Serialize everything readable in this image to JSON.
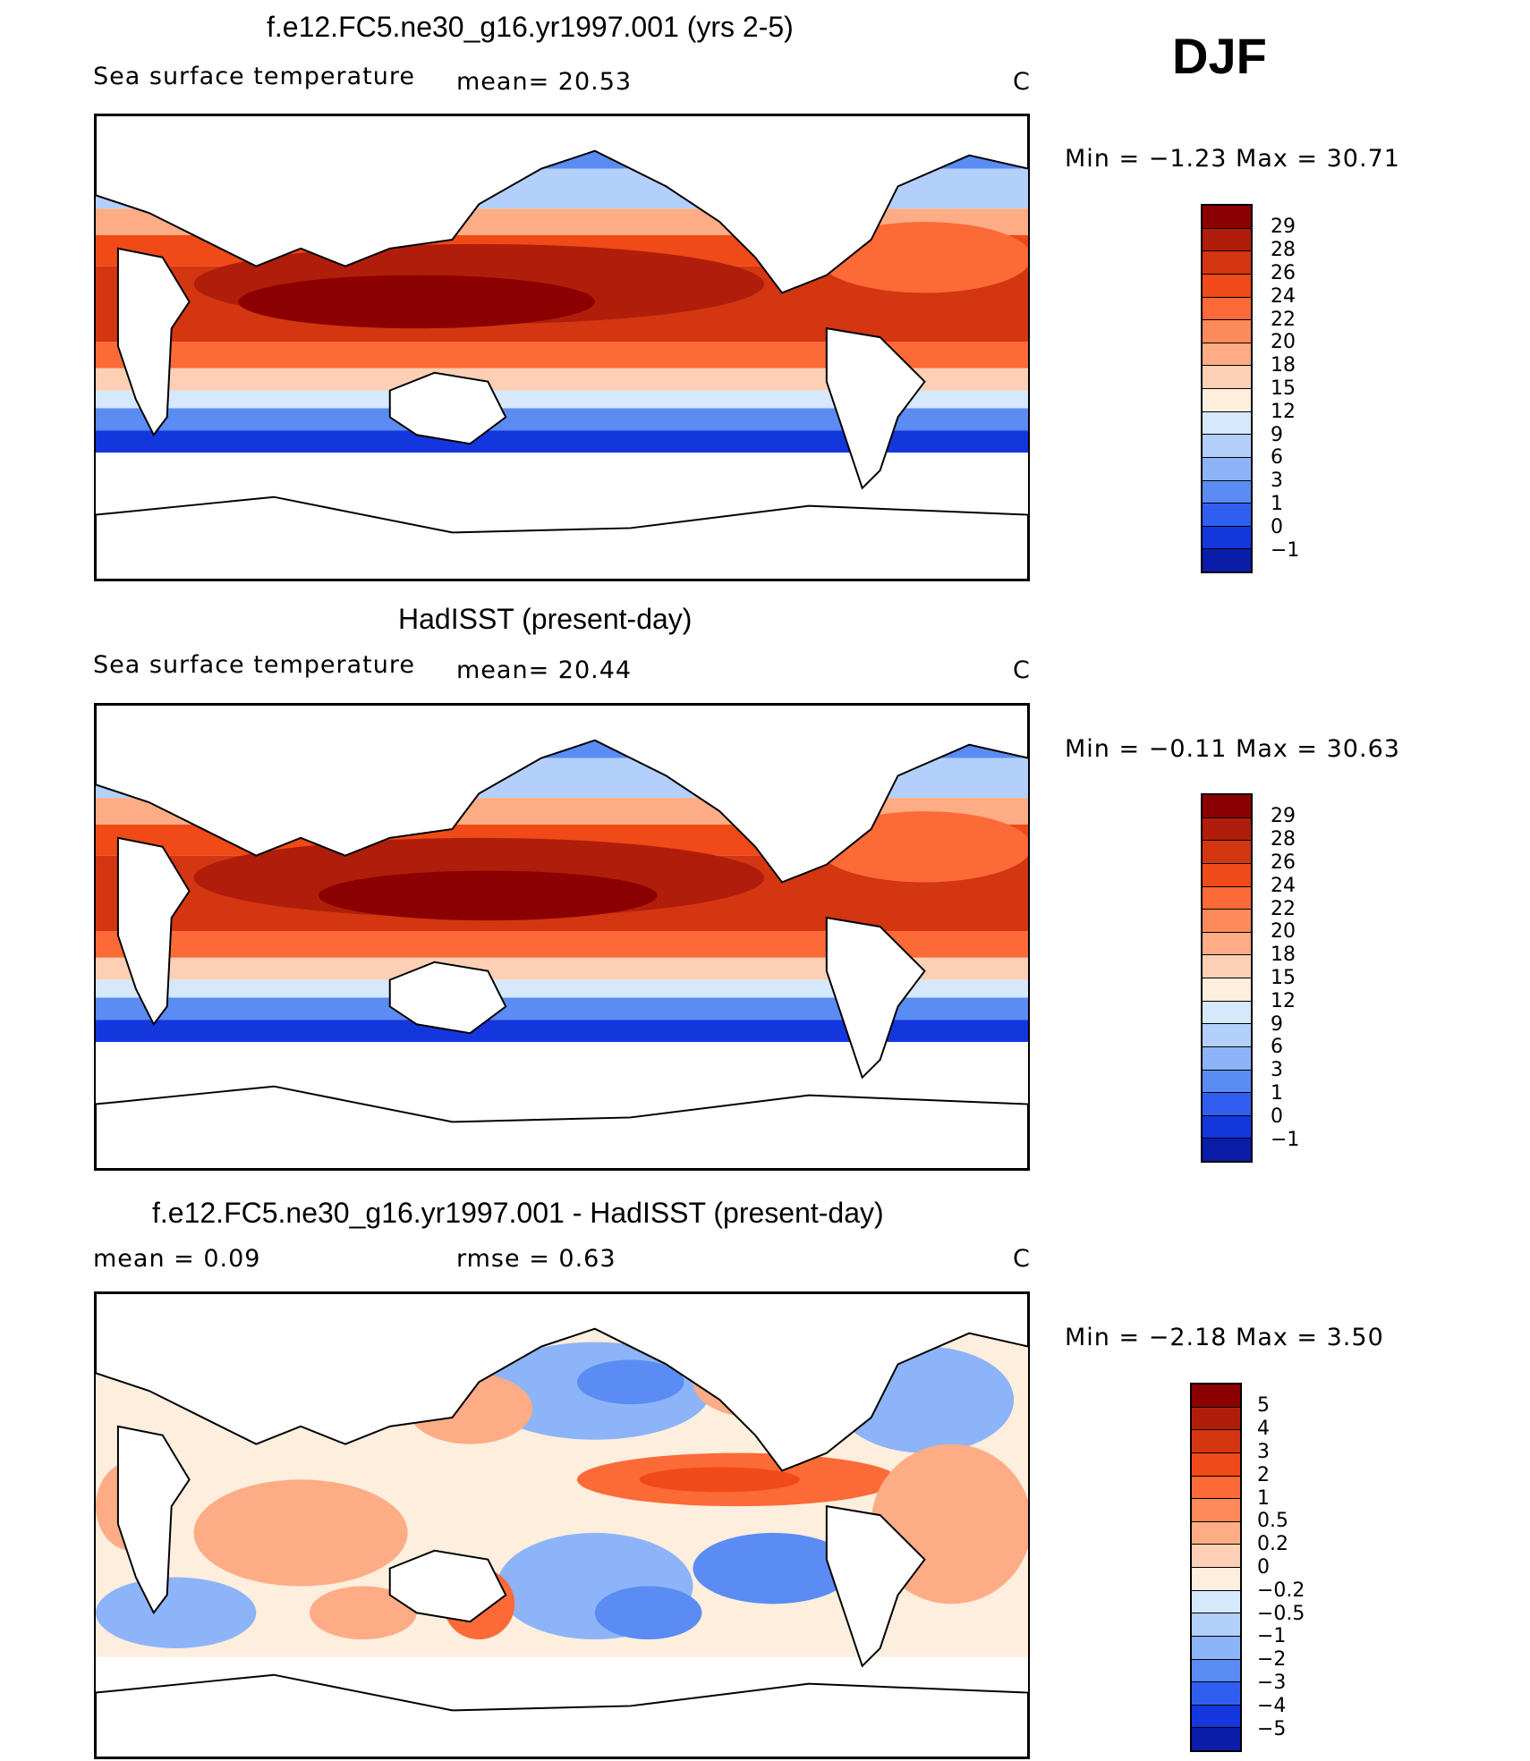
{
  "season": "DJF",
  "panels": [
    {
      "title": "f.e12.FC5.ne30_g16.yr1997.001 (yrs 2-5)",
      "left_label": "Sea surface temperature",
      "mid_label": "mean=   20.53",
      "units": "C",
      "min_label": "Min  =    −1.23  Max  =    30.71",
      "colorbar_labels": [
        "29",
        "28",
        "26",
        "24",
        "22",
        "20",
        "18",
        "15",
        "12",
        "9",
        "6",
        "3",
        "1",
        "0",
        "−1"
      ],
      "colorbar_colors": [
        "#8b0000",
        "#b01e0b",
        "#d33611",
        "#ef4a17",
        "#fb6a37",
        "#fc8a5a",
        "#fdac85",
        "#fdd0b5",
        "#fdeede",
        "#d6e8fb",
        "#b3cffb",
        "#8db4f8",
        "#5a8cf3",
        "#2f5ef0",
        "#1436dd",
        "#0a1ca8",
        "#00007a"
      ],
      "color_index": "sst"
    },
    {
      "title": "HadISST (present-day)",
      "left_label": "Sea surface temperature",
      "mid_label": "mean=   20.44",
      "units": "C",
      "min_label": "Min  =    −0.11  Max  =    30.63",
      "colorbar_labels": [
        "29",
        "28",
        "26",
        "24",
        "22",
        "20",
        "18",
        "15",
        "12",
        "9",
        "6",
        "3",
        "1",
        "0",
        "−1"
      ],
      "colorbar_colors": [
        "#8b0000",
        "#b01e0b",
        "#d33611",
        "#ef4a17",
        "#fb6a37",
        "#fc8a5a",
        "#fdac85",
        "#fdd0b5",
        "#fdeede",
        "#d6e8fb",
        "#b3cffb",
        "#8db4f8",
        "#5a8cf3",
        "#2f5ef0",
        "#1436dd",
        "#0a1ca8",
        "#00007a"
      ],
      "color_index": "sst"
    },
    {
      "title": "f.e12.FC5.ne30_g16.yr1997.001 - HadISST (present-day)",
      "left_label": "mean  =    0.09",
      "mid_label": "rmse  =    0.63",
      "units": "C",
      "min_label": "Min  =    −2.18  Max  =     3.50",
      "colorbar_labels": [
        "5",
        "4",
        "3",
        "2",
        "1",
        "0.5",
        "0.2",
        "0",
        "−0.2",
        "−0.5",
        "−1",
        "−2",
        "−3",
        "−4",
        "−5"
      ],
      "colorbar_colors": [
        "#8b0000",
        "#b01e0b",
        "#d33611",
        "#ef4a17",
        "#fb6a37",
        "#fc8a5a",
        "#fdac85",
        "#fdd0b5",
        "#fdeede",
        "#d6e8fb",
        "#b3cffb",
        "#8db4f8",
        "#5a8cf3",
        "#2f5ef0",
        "#1436dd",
        "#0a1ca8",
        "#00007a"
      ],
      "color_index": "diff"
    }
  ]
}
